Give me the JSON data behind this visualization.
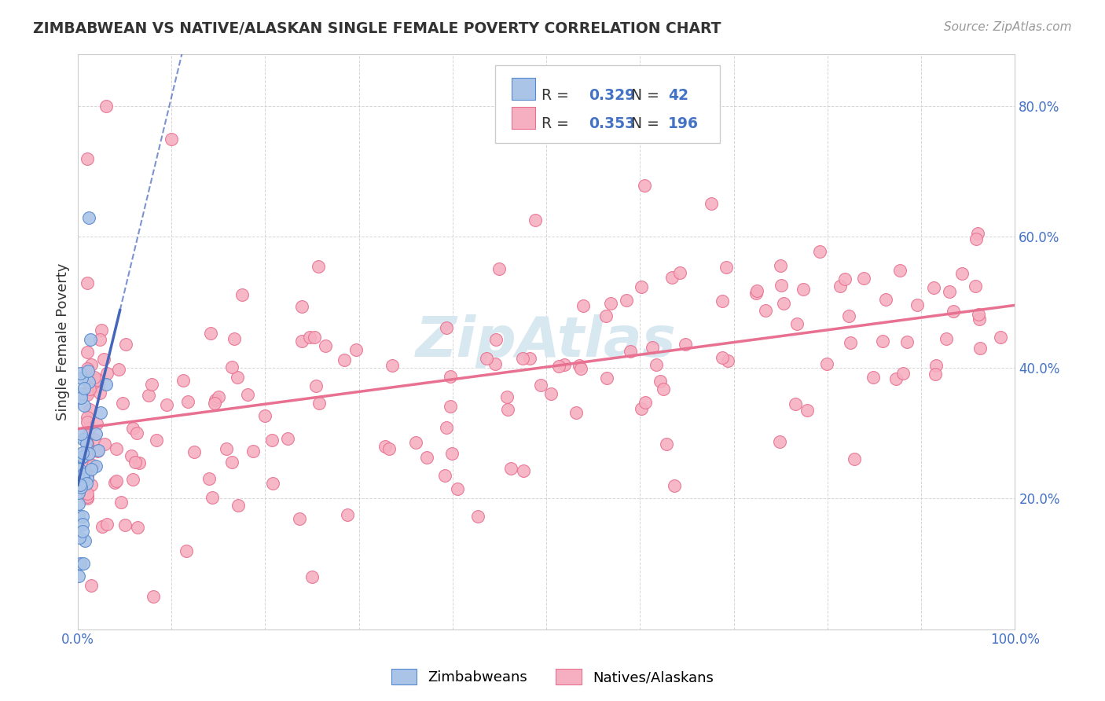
{
  "title": "ZIMBABWEAN VS NATIVE/ALASKAN SINGLE FEMALE POVERTY CORRELATION CHART",
  "source": "Source: ZipAtlas.com",
  "ylabel": "Single Female Poverty",
  "xlim": [
    0.0,
    1.0
  ],
  "ylim": [
    0.0,
    0.88
  ],
  "zimbabwean_R": 0.329,
  "zimbabwean_N": 42,
  "native_R": 0.353,
  "native_N": 196,
  "zimbabwean_color": "#aac4e8",
  "zimbabwean_edge": "#5588cc",
  "native_color": "#f5afc0",
  "native_edge": "#e87090",
  "trendline_zimbabwean_color": "#4466bb",
  "trendline_native_color": "#e87090",
  "legend_color": "#4472c4",
  "watermark_color": "#d8e8f0",
  "background_color": "#ffffff",
  "grid_color": "#cccccc",
  "y_ticks": [
    0.0,
    0.2,
    0.4,
    0.6,
    0.8
  ],
  "y_tick_labels_right": [
    "",
    "20.0%",
    "40.0%",
    "60.0%",
    "80.0%"
  ],
  "x_tick_labels": [
    "0.0%",
    "",
    "",
    "",
    "",
    "",
    "",
    "",
    "",
    "",
    "100.0%"
  ]
}
